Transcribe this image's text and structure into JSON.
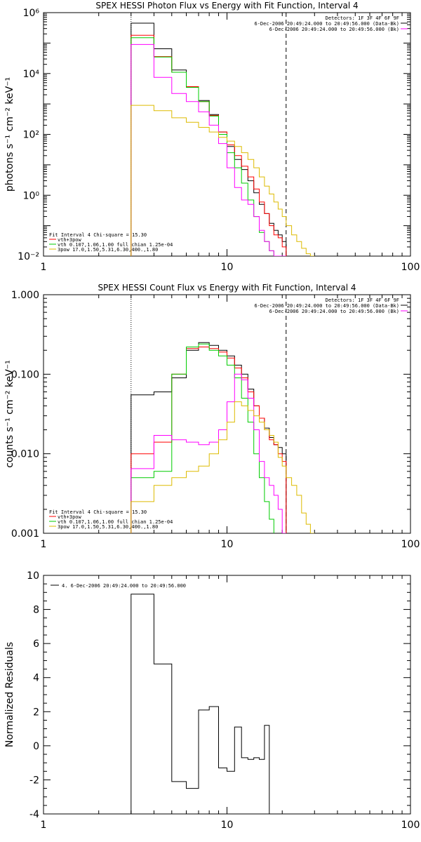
{
  "chart_data": [
    {
      "type": "line",
      "title": "SPEX HESSI Photon Flux vs Energy with Fit Function, Interval 4",
      "ylabel": "photons s⁻¹ cm⁻² keV⁻¹",
      "xlim": [
        1,
        100
      ],
      "ylim": [
        0.01,
        1000000
      ],
      "x_scale": "log",
      "y_scale": "log",
      "x_tick_labels": [
        "1",
        "10",
        "100"
      ],
      "y_tick_labels": [
        "10⁻²",
        "10⁰",
        "10²",
        "10⁴",
        "10⁶"
      ],
      "y_tick_values": [
        0.01,
        1,
        100,
        10000,
        1000000
      ],
      "vlines": [
        {
          "x": 3,
          "style": "dotted"
        },
        {
          "x": 21,
          "style": "dashed"
        }
      ],
      "header_text": [
        "Detectors: 1F 3F 4F 6F 9F",
        "6-Dec-2006 20:49:24.000 to 20:49:56.000 (Data-Bk)",
        "6-Dec-2006 20:49:24.000 to 20:49:56.000 (Bk)"
      ],
      "legend_text": [
        "Fit Interval  4    Chi-square = 15.30",
        "vth+3pow",
        "vth 0.107,1.06,1.00  full chian 1.25e-04",
        "3pow 17.0,1.50,5.31,6.30,400.,1.80"
      ],
      "edges": [
        3,
        4,
        5,
        6,
        7,
        8,
        9,
        10,
        11,
        12,
        13,
        14,
        15,
        16,
        17,
        18,
        19,
        20,
        21,
        22.5,
        24,
        25.5,
        27,
        28.5,
        30
      ],
      "series": [
        {
          "color": "#000000",
          "values": [
            450000,
            65000,
            13000,
            3500,
            1300,
            450,
            120,
            40,
            15,
            7,
            3,
            1.2,
            0.5,
            0.25,
            0.12,
            0.07,
            0.05,
            0.03
          ]
        },
        {
          "color": "#ff0000",
          "values": [
            180000,
            36000,
            11000,
            3700,
            1200,
            420,
            120,
            45,
            20,
            9,
            4,
            1.6,
            0.6,
            0.25,
            0.1,
            0.05,
            0.04,
            0.02
          ]
        },
        {
          "color": "#00cc00",
          "values": [
            150000,
            35000,
            11000,
            3500,
            1200,
            400,
            100,
            25,
            8,
            2.5,
            0.7,
            0.2,
            0.06,
            0.03,
            0.015
          ]
        },
        {
          "color": "#ff00ff",
          "values": [
            90000,
            7500,
            2200,
            1200,
            550,
            200,
            50,
            8,
            1.8,
            0.7,
            0.5,
            0.2,
            0.07,
            0.03,
            0.015,
            0.01,
            0.008,
            0.005
          ]
        },
        {
          "color": "#ddbb00",
          "values": [
            900,
            600,
            350,
            250,
            170,
            120,
            80,
            60,
            40,
            25,
            15,
            8,
            4,
            2,
            1.1,
            0.6,
            0.35,
            0.2,
            0.1,
            0.05,
            0.03,
            0.018,
            0.012,
            0.008
          ]
        }
      ]
    },
    {
      "type": "line",
      "title": "SPEX HESSI Count Flux vs Energy with Fit Function, Interval 4",
      "ylabel": "counts s⁻¹ cm⁻² keV⁻¹",
      "xlim": [
        1,
        100
      ],
      "ylim": [
        0.001,
        1
      ],
      "x_scale": "log",
      "y_scale": "log",
      "x_tick_labels": [
        "1",
        "10",
        "100"
      ],
      "y_tick_labels": [
        "0.001",
        "0.010",
        "0.100",
        "1.000"
      ],
      "y_tick_values": [
        0.001,
        0.01,
        0.1,
        1
      ],
      "vlines": [
        {
          "x": 3,
          "style": "dotted"
        },
        {
          "x": 21,
          "style": "dashed"
        }
      ],
      "header_text": [
        "Detectors: 1F 3F 4F 6F 9F",
        "6-Dec-2006 20:49:24.000 to 20:49:56.000 (Data-Bk)",
        "6-Dec-2006 20:49:24.000 to 20:49:56.000 (Bk)"
      ],
      "legend_text": [
        "Fit Interval  4    Chi-square = 15.30",
        "vth+3pow",
        "vth 0.107,1.06,1.00  full chian 1.25e-04",
        "3pow 17.0,1.50,5.31,6.30,400.,1.80"
      ],
      "edges": [
        3,
        4,
        5,
        6,
        7,
        8,
        9,
        10,
        11,
        12,
        13,
        14,
        15,
        16,
        17,
        18,
        19,
        20,
        21,
        22.5,
        24,
        25.5,
        27,
        28.5,
        30
      ],
      "series": [
        {
          "color": "#000000",
          "values": [
            0.055,
            0.06,
            0.09,
            0.2,
            0.25,
            0.23,
            0.2,
            0.17,
            0.13,
            0.1,
            0.065,
            0.04,
            0.028,
            0.021,
            0.016,
            0.013,
            0.012,
            0.01
          ]
        },
        {
          "color": "#ff0000",
          "values": [
            0.01,
            0.014,
            0.1,
            0.21,
            0.22,
            0.21,
            0.19,
            0.16,
            0.12,
            0.09,
            0.06,
            0.04,
            0.028,
            0.02,
            0.015,
            0.013,
            0.01,
            0.008
          ]
        },
        {
          "color": "#00cc00",
          "values": [
            0.005,
            0.006,
            0.1,
            0.22,
            0.24,
            0.2,
            0.17,
            0.13,
            0.09,
            0.05,
            0.025,
            0.01,
            0.005,
            0.0025,
            0.0015
          ]
        },
        {
          "color": "#ff00ff",
          "values": [
            0.0065,
            0.017,
            0.015,
            0.014,
            0.013,
            0.014,
            0.02,
            0.045,
            0.1,
            0.085,
            0.05,
            0.02,
            0.008,
            0.005,
            0.004,
            0.003,
            0.002,
            0.001
          ]
        },
        {
          "color": "#ddbb00",
          "values": [
            0.0025,
            0.004,
            0.005,
            0.006,
            0.007,
            0.01,
            0.015,
            0.025,
            0.045,
            0.04,
            0.035,
            0.03,
            0.025,
            0.02,
            0.017,
            0.014,
            0.009,
            0.007,
            0.005,
            0.004,
            0.003,
            0.0018,
            0.0013,
            0.001
          ]
        }
      ]
    },
    {
      "type": "line",
      "ylabel": "Normalized Residuals",
      "xlim": [
        1,
        100
      ],
      "ylim": [
        -4,
        10
      ],
      "x_scale": "log",
      "y_scale": "linear",
      "x_tick_labels": [
        "1",
        "10",
        "100"
      ],
      "y_tick_labels": [
        "-4",
        "-2",
        "0",
        "2",
        "4",
        "6",
        "8",
        "10"
      ],
      "y_tick_values": [
        -4,
        -2,
        0,
        2,
        4,
        6,
        8,
        10
      ],
      "legend_text": [
        "4.  6-Dec-2006 20:49:24.000 to 20:49:56.000"
      ],
      "edges": [
        3,
        4,
        5,
        6,
        7,
        8,
        9,
        10,
        11,
        12,
        13,
        14,
        15,
        16,
        17,
        18,
        19,
        20,
        21
      ],
      "series": [
        {
          "color": "#000000",
          "values": [
            8.9,
            4.8,
            -2.1,
            -2.5,
            2.1,
            2.3,
            -1.3,
            -1.5,
            1.1,
            -0.7,
            -0.8,
            -0.7,
            -0.8,
            1.2
          ]
        }
      ]
    }
  ]
}
